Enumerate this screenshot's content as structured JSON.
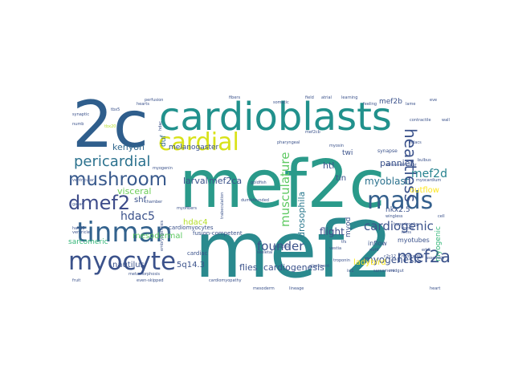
{
  "words": [
    {
      "text": "mef2c",
      "color": "#2a9a8a"
    },
    {
      "text": "mef2",
      "color": "#2a8a8e"
    },
    {
      "text": "2c",
      "color": "#2f5e8c"
    },
    {
      "text": "cardioblasts",
      "color": "#21918c"
    },
    {
      "text": "tinman",
      "color": "#33628d"
    },
    {
      "text": "myocyte",
      "color": "#3b528b"
    },
    {
      "text": "cardial",
      "color": "#d8e219"
    },
    {
      "text": "mushroom",
      "color": "#38598c"
    },
    {
      "text": "pericardial",
      "color": "#2c728e"
    },
    {
      "text": "dmef2",
      "color": "#3e4c8a"
    },
    {
      "text": "mads",
      "color": "#35608d"
    },
    {
      "text": "mef2a",
      "color": "#3b528b"
    },
    {
      "text": "heartless",
      "color": "#3b528b"
    },
    {
      "text": "musculature",
      "color": "#5ec962"
    },
    {
      "text": "cardiogenic",
      "color": "#3b528b"
    },
    {
      "text": "founder",
      "color": "#3b528b"
    },
    {
      "text": "mef2d",
      "color": "#26828e"
    },
    {
      "text": "myoblast",
      "color": "#2c728e"
    },
    {
      "text": "hdac5",
      "color": "#3b528b"
    },
    {
      "text": "drosophila",
      "color": "#2a788e"
    },
    {
      "text": "flight",
      "color": "#3e4c8a"
    },
    {
      "text": "myogenesis",
      "color": "#3b528b"
    },
    {
      "text": "kenyon",
      "color": "#31688e"
    },
    {
      "text": "melanogaster",
      "color": "#3b528b"
    },
    {
      "text": "larval",
      "color": "#3b528b"
    },
    {
      "text": "mef2ca",
      "color": "#3b528b"
    },
    {
      "text": "htl",
      "color": "#3b528b"
    },
    {
      "text": "pannier",
      "color": "#3b528b"
    },
    {
      "text": "visceral",
      "color": "#6ece58"
    },
    {
      "text": "shf",
      "color": "#3b528b"
    },
    {
      "text": "hdac4",
      "color": "#b5de2b"
    },
    {
      "text": "mesodermal",
      "color": "#5ec962"
    },
    {
      "text": "sarcomeric",
      "color": "#35b779"
    },
    {
      "text": "5q14.3",
      "color": "#3b528b"
    },
    {
      "text": "flies",
      "color": "#3b528b"
    },
    {
      "text": "cardiogenesis",
      "color": "#3b528b"
    },
    {
      "text": "ladybird",
      "color": "#fde725"
    },
    {
      "text": "myogenic",
      "color": "#35b779"
    },
    {
      "text": "nautilus",
      "color": "#3b528b"
    },
    {
      "text": "tin",
      "color": "#3b528b"
    },
    {
      "text": "outflow",
      "color": "#fde725"
    },
    {
      "text": "myod",
      "color": "#3b528b"
    },
    {
      "text": "duf",
      "color": "#31688e"
    },
    {
      "text": "mef2b",
      "color": "#3b528b"
    },
    {
      "text": "twi",
      "color": "#3b528b"
    },
    {
      "text": "nkx2.5",
      "color": "#3b528b"
    },
    {
      "text": "inflow",
      "color": "#3b528b"
    },
    {
      "text": "myotubes",
      "color": "#3b528b"
    },
    {
      "text": "cardiac",
      "color": "#3b528b"
    },
    {
      "text": "fusion-competent",
      "color": "#3b528b"
    },
    {
      "text": "cardiomyocytes",
      "color": "#3b528b"
    },
    {
      "text": "fcms",
      "color": "#3b528b"
    },
    {
      "text": "synapse",
      "color": "#3b528b"
    },
    {
      "text": "myosin",
      "color": "#3b528b"
    },
    {
      "text": "troponin",
      "color": "#3b528b"
    },
    {
      "text": "chamber",
      "color": "#3b528b"
    },
    {
      "text": "gata4",
      "color": "#3b528b"
    },
    {
      "text": "hand2",
      "color": "#3b528b"
    },
    {
      "text": "ventricle",
      "color": "#3b528b"
    },
    {
      "text": "fruit",
      "color": "#3b528b"
    },
    {
      "text": "even-skipped",
      "color": "#3b528b"
    },
    {
      "text": "numb",
      "color": "#3b528b"
    },
    {
      "text": "tbx5",
      "color": "#3b528b"
    },
    {
      "text": "tbx20",
      "color": "#b5de2b"
    },
    {
      "text": "hearts",
      "color": "#3b528b"
    },
    {
      "text": "myofibers",
      "color": "#3b528b"
    },
    {
      "text": "synaptic",
      "color": "#3b528b"
    },
    {
      "text": "ventricular",
      "color": "#3b528b"
    },
    {
      "text": "somatic",
      "color": "#3b528b"
    },
    {
      "text": "field",
      "color": "#3b528b"
    },
    {
      "text": "atrial",
      "color": "#3b528b"
    },
    {
      "text": "learning",
      "color": "#3b528b"
    },
    {
      "text": "feeling",
      "color": "#3b528b"
    },
    {
      "text": "contractile",
      "color": "#3b528b"
    },
    {
      "text": "atrioventricular",
      "color": "#3b528b"
    },
    {
      "text": "wingless",
      "color": "#3b528b"
    },
    {
      "text": "dorsal",
      "color": "#3b528b"
    },
    {
      "text": "skeletal",
      "color": "#3b528b"
    },
    {
      "text": "muscles",
      "color": "#3b528b"
    },
    {
      "text": "alignment",
      "color": "#3b528b"
    },
    {
      "text": "vestia",
      "color": "#3b528b"
    },
    {
      "text": "trabeculation",
      "color": "#3b528b"
    },
    {
      "text": "dumbfounded",
      "color": "#3b528b"
    },
    {
      "text": "metamorphosis",
      "color": "#3b528b"
    },
    {
      "text": "embryogenesis",
      "color": "#3b528b"
    },
    {
      "text": "myogenin",
      "color": "#3b528b"
    },
    {
      "text": "c2c12",
      "color": "#3b528b"
    },
    {
      "text": "myocardial",
      "color": "#3b528b"
    },
    {
      "text": "assembly",
      "color": "#3b528b"
    },
    {
      "text": "mef2cb",
      "color": "#3b528b"
    },
    {
      "text": "eve",
      "color": "#3b528b"
    },
    {
      "text": "lame",
      "color": "#3b528b"
    },
    {
      "text": "tfs",
      "color": "#3b528b"
    },
    {
      "text": "fibers",
      "color": "#3b528b"
    },
    {
      "text": "myocardium",
      "color": "#3b528b"
    },
    {
      "text": "mrf4",
      "color": "#3b528b"
    },
    {
      "text": "erk5",
      "color": "#3b528b"
    },
    {
      "text": "hdacs",
      "color": "#3b528b"
    },
    {
      "text": "hdac",
      "color": "#3b528b"
    },
    {
      "text": "sarcomere",
      "color": "#3b528b"
    },
    {
      "text": "perfusion",
      "color": "#3b528b"
    },
    {
      "text": "hypertrophy",
      "color": "#3b528b"
    },
    {
      "text": "cardiomyopathy",
      "color": "#3b528b"
    },
    {
      "text": "mesoderm",
      "color": "#3b528b"
    },
    {
      "text": "lineage",
      "color": "#3b528b"
    },
    {
      "text": "pharyngeal",
      "color": "#3b528b"
    },
    {
      "text": "midgut",
      "color": "#3b528b"
    },
    {
      "text": "bulbus",
      "color": "#3b528b"
    },
    {
      "text": "goldfish",
      "color": "#3b528b"
    },
    {
      "text": "isl1",
      "color": "#3b528b"
    },
    {
      "text": "wall",
      "color": "#3b528b"
    },
    {
      "text": "cell",
      "color": "#3b528b"
    },
    {
      "text": "heart",
      "color": "#3b528b"
    }
  ]
}
